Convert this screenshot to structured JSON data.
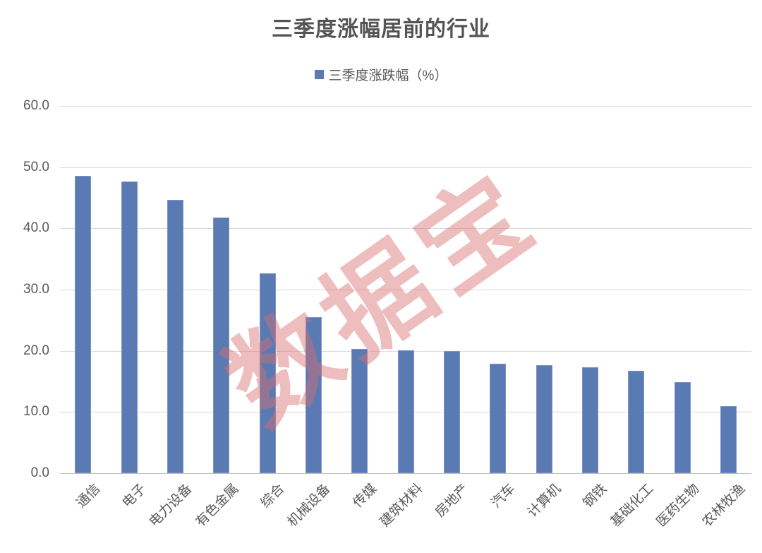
{
  "title": "三季度涨幅居前的行业",
  "legend": {
    "label": "三季度涨跌幅（%）"
  },
  "watermark": {
    "text": "数据宝"
  },
  "colors": {
    "bar": "#5a7ab4",
    "bar_edge": "#7e93c4",
    "grid": "#d9d9d9",
    "axis": "#bfbfbf",
    "text": "#595959",
    "title": "#545454",
    "watermark": "rgba(217,108,108,0.45)"
  },
  "chart_data": {
    "type": "bar",
    "title": "三季度涨幅居前的行业",
    "legend_entries": [
      "三季度涨跌幅（%）"
    ],
    "legend_position": "top",
    "categories": [
      "通信",
      "电子",
      "电力设备",
      "有色金属",
      "综合",
      "机械设备",
      "传媒",
      "建筑材料",
      "房地产",
      "汽车",
      "计算机",
      "钢铁",
      "基础化工",
      "医药生物",
      "农林牧渔"
    ],
    "values": [
      48.6,
      47.6,
      44.7,
      41.8,
      32.6,
      25.5,
      20.3,
      20.1,
      20.0,
      17.9,
      17.6,
      17.3,
      16.7,
      14.9,
      11.0
    ],
    "xlabel": "",
    "ylabel": "",
    "ylim": [
      0,
      60
    ],
    "yticks": [
      0,
      10,
      20,
      30,
      40,
      50,
      60
    ],
    "ytick_labels": [
      "0.0",
      "10.0",
      "20.0",
      "30.0",
      "40.0",
      "50.0",
      "60.0"
    ],
    "grid": true,
    "xtick_rotation_deg": 45
  }
}
